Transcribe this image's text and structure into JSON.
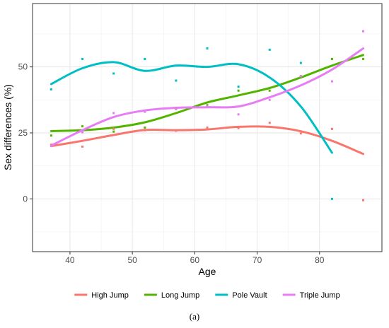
{
  "figure": {
    "caption": "(a)"
  },
  "chart_data": {
    "type": "scatter",
    "title": "",
    "xlabel": "Age",
    "ylabel": "Sex differences (%)",
    "xlim": [
      34,
      90
    ],
    "ylim": [
      -20,
      74
    ],
    "xticks": [
      40,
      50,
      60,
      70,
      80
    ],
    "yticks": [
      0,
      25,
      50
    ],
    "grid": true,
    "legend_position": "bottom",
    "series": [
      {
        "name": "High Jump",
        "color": "#F8766D",
        "points": [
          [
            37,
            20.5
          ],
          [
            42,
            19.8
          ],
          [
            47,
            26.5
          ],
          [
            52,
            26
          ],
          [
            57,
            25.8
          ],
          [
            62,
            27
          ],
          [
            67,
            26.8
          ],
          [
            72,
            28.8
          ],
          [
            77,
            24.8
          ],
          [
            82,
            26.5
          ],
          [
            87,
            -0.5
          ]
        ],
        "smooth": [
          [
            37,
            20
          ],
          [
            42,
            22
          ],
          [
            47,
            24.2
          ],
          [
            52,
            26.1
          ],
          [
            57,
            26
          ],
          [
            62,
            26.3
          ],
          [
            67,
            27.3
          ],
          [
            72,
            27.3
          ],
          [
            77,
            25.6
          ],
          [
            82,
            22
          ],
          [
            87,
            17
          ]
        ]
      },
      {
        "name": "Long Jump",
        "color": "#53B400",
        "points": [
          [
            37,
            24
          ],
          [
            42,
            27.5
          ],
          [
            47,
            25.5
          ],
          [
            52,
            27
          ],
          [
            57,
            34
          ],
          [
            62,
            35.5
          ],
          [
            67,
            41
          ],
          [
            72,
            41
          ],
          [
            77,
            46.5
          ],
          [
            82,
            53
          ],
          [
            87,
            53
          ]
        ],
        "smooth": [
          [
            37,
            25.7
          ],
          [
            42,
            26
          ],
          [
            47,
            27
          ],
          [
            52,
            29
          ],
          [
            57,
            32.5
          ],
          [
            62,
            36.5
          ],
          [
            67,
            39.2
          ],
          [
            72,
            42
          ],
          [
            77,
            46
          ],
          [
            82,
            50.5
          ],
          [
            87,
            54.5
          ]
        ]
      },
      {
        "name": "Pole Vault",
        "color": "#00BFC4",
        "points": [
          [
            37,
            41.5
          ],
          [
            42,
            53
          ],
          [
            47,
            47.5
          ],
          [
            52,
            53
          ],
          [
            57,
            44.8
          ],
          [
            62,
            57
          ],
          [
            67,
            42.5
          ],
          [
            72,
            56.5
          ],
          [
            77,
            51.5
          ],
          [
            82,
            0
          ]
        ],
        "smooth": [
          [
            37,
            43.5
          ],
          [
            42,
            49.5
          ],
          [
            47,
            51.8
          ],
          [
            52,
            48.5
          ],
          [
            57,
            50.5
          ],
          [
            62,
            50
          ],
          [
            67,
            51
          ],
          [
            72,
            46
          ],
          [
            77,
            35
          ],
          [
            82,
            17.5
          ]
        ]
      },
      {
        "name": "Triple Jump",
        "color": "#E77CF5",
        "points": [
          [
            37,
            20
          ],
          [
            42,
            25.2
          ],
          [
            47,
            32.5
          ],
          [
            52,
            33
          ],
          [
            57,
            34
          ],
          [
            62,
            35
          ],
          [
            67,
            32
          ],
          [
            72,
            37.5
          ],
          [
            77,
            46.5
          ],
          [
            82,
            44.5
          ],
          [
            87,
            63.5
          ]
        ],
        "smooth": [
          [
            37,
            20.2
          ],
          [
            42,
            26
          ],
          [
            47,
            31
          ],
          [
            52,
            33.5
          ],
          [
            57,
            34.5
          ],
          [
            62,
            34.7
          ],
          [
            67,
            35
          ],
          [
            72,
            38.5
          ],
          [
            77,
            43
          ],
          [
            82,
            49
          ],
          [
            87,
            57
          ]
        ]
      }
    ]
  }
}
